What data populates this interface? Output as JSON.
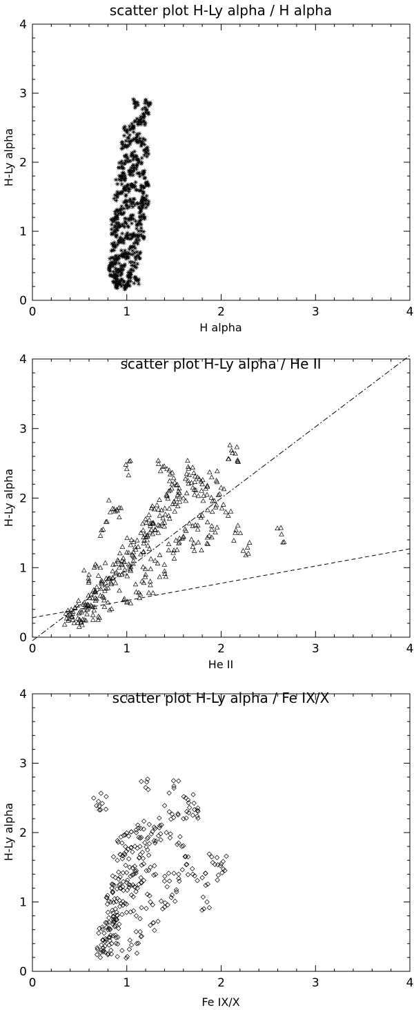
{
  "chart_data": [
    {
      "type": "scatter",
      "title": "scatter plot  H-Ly alpha / H alpha",
      "xlabel": "H alpha",
      "ylabel": "H-Ly alpha",
      "xlim": [
        0,
        4
      ],
      "ylim": [
        0,
        4
      ],
      "x_ticks": [
        "0",
        "1",
        "2",
        "3",
        "4"
      ],
      "y_ticks": [
        "0",
        "1",
        "2",
        "3",
        "4"
      ],
      "marker": "asterisk",
      "grid": false,
      "series": [
        {
          "points": [
            [
              0.88,
              0.22
            ],
            [
              0.92,
              0.25
            ],
            [
              0.97,
              0.22
            ],
            [
              1.02,
              0.28
            ],
            [
              0.86,
              0.35
            ],
            [
              0.91,
              0.4
            ],
            [
              0.96,
              0.45
            ],
            [
              1.03,
              0.38
            ],
            [
              1.08,
              0.5
            ],
            [
              0.85,
              0.55
            ],
            [
              0.9,
              0.6
            ],
            [
              0.95,
              0.66
            ],
            [
              1.0,
              0.62
            ],
            [
              1.06,
              0.72
            ],
            [
              1.12,
              0.65
            ],
            [
              0.86,
              0.78
            ],
            [
              0.92,
              0.85
            ],
            [
              0.98,
              0.9
            ],
            [
              1.04,
              0.95
            ],
            [
              1.1,
              0.88
            ],
            [
              0.87,
              1.0
            ],
            [
              0.93,
              1.08
            ],
            [
              0.99,
              1.12
            ],
            [
              1.05,
              1.18
            ],
            [
              1.12,
              1.1
            ],
            [
              1.16,
              1.22
            ],
            [
              0.88,
              1.25
            ],
            [
              0.94,
              1.32
            ],
            [
              1.0,
              1.38
            ],
            [
              1.06,
              1.42
            ],
            [
              1.13,
              1.35
            ],
            [
              1.18,
              1.48
            ],
            [
              0.9,
              1.5
            ],
            [
              0.96,
              1.58
            ],
            [
              1.02,
              1.62
            ],
            [
              1.08,
              1.66
            ],
            [
              1.15,
              1.6
            ],
            [
              1.2,
              1.7
            ],
            [
              0.92,
              1.75
            ],
            [
              0.98,
              1.8
            ],
            [
              1.04,
              1.86
            ],
            [
              1.1,
              1.9
            ],
            [
              1.17,
              1.82
            ],
            [
              0.95,
              1.98
            ],
            [
              1.01,
              2.05
            ],
            [
              1.07,
              2.1
            ],
            [
              1.13,
              2.02
            ],
            [
              1.2,
              2.15
            ],
            [
              0.98,
              2.25
            ],
            [
              1.04,
              2.3
            ],
            [
              1.1,
              2.35
            ],
            [
              1.16,
              2.28
            ],
            [
              1.0,
              2.45
            ],
            [
              1.06,
              2.5
            ],
            [
              1.12,
              2.58
            ],
            [
              1.09,
              2.85
            ],
            [
              1.2,
              2.72
            ],
            [
              1.22,
              2.85
            ],
            [
              1.18,
              2.6
            ],
            [
              0.9,
              0.3
            ],
            [
              1.1,
              0.3
            ],
            [
              0.82,
              0.48
            ],
            [
              1.15,
              0.95
            ],
            [
              1.2,
              1.4
            ],
            [
              0.87,
              1.15
            ]
          ]
        }
      ]
    },
    {
      "type": "scatter",
      "title": "scatter plot  H-Ly alpha / He II",
      "xlabel": "He II",
      "ylabel": "H-Ly alpha",
      "xlim": [
        0,
        4
      ],
      "ylim": [
        0,
        4
      ],
      "x_ticks": [
        "0",
        "1",
        "2",
        "3",
        "4"
      ],
      "y_ticks": [
        "0",
        "1",
        "2",
        "3",
        "4"
      ],
      "marker": "triangle",
      "grid": false,
      "series": [
        {
          "points": [
            [
              0.38,
              0.24
            ],
            [
              0.42,
              0.3
            ],
            [
              0.48,
              0.27
            ],
            [
              0.52,
              0.36
            ],
            [
              0.45,
              0.42
            ],
            [
              0.58,
              0.4
            ],
            [
              0.55,
              0.5
            ],
            [
              0.62,
              0.46
            ],
            [
              0.68,
              0.55
            ],
            [
              0.72,
              0.6
            ],
            [
              0.65,
              0.68
            ],
            [
              0.78,
              0.7
            ],
            [
              0.74,
              0.8
            ],
            [
              0.82,
              0.85
            ],
            [
              0.88,
              0.78
            ],
            [
              0.85,
              0.95
            ],
            [
              0.92,
              1.0
            ],
            [
              0.98,
              0.92
            ],
            [
              0.95,
              1.1
            ],
            [
              1.02,
              1.05
            ],
            [
              1.08,
              1.15
            ],
            [
              1.0,
              1.22
            ],
            [
              1.12,
              1.3
            ],
            [
              1.05,
              1.4
            ],
            [
              1.18,
              1.35
            ],
            [
              1.15,
              1.5
            ],
            [
              1.22,
              1.45
            ],
            [
              1.25,
              1.6
            ],
            [
              1.3,
              1.55
            ],
            [
              1.2,
              1.7
            ],
            [
              1.35,
              1.75
            ],
            [
              1.4,
              1.65
            ],
            [
              1.32,
              1.9
            ],
            [
              1.45,
              1.85
            ],
            [
              1.5,
              1.95
            ],
            [
              1.42,
              2.05
            ],
            [
              1.55,
              2.1
            ],
            [
              1.6,
              2.0
            ],
            [
              1.48,
              2.2
            ],
            [
              1.65,
              2.25
            ],
            [
              1.7,
              2.15
            ],
            [
              1.75,
              2.3
            ],
            [
              1.8,
              2.2
            ],
            [
              1.85,
              2.05
            ],
            [
              1.9,
              2.3
            ],
            [
              1.95,
              1.9
            ],
            [
              2.0,
              2.15
            ],
            [
              1.38,
              2.45
            ],
            [
              1.45,
              2.4
            ],
            [
              1.65,
              2.45
            ],
            [
              2.12,
              2.65
            ],
            [
              2.15,
              2.64
            ],
            [
              1.0,
              2.42
            ],
            [
              0.85,
              1.85
            ],
            [
              0.9,
              1.82
            ],
            [
              0.75,
              1.55
            ],
            [
              0.72,
              1.0
            ],
            [
              0.6,
              0.9
            ],
            [
              0.8,
              0.5
            ],
            [
              1.1,
              0.65
            ],
            [
              1.2,
              0.9
            ],
            [
              1.3,
              1.1
            ],
            [
              1.5,
              1.25
            ],
            [
              1.6,
              1.45
            ],
            [
              1.7,
              1.6
            ],
            [
              1.8,
              1.75
            ],
            [
              1.9,
              1.55
            ],
            [
              2.05,
              1.8
            ],
            [
              2.28,
              1.29
            ],
            [
              2.64,
              1.48
            ],
            [
              2.15,
              1.5
            ],
            [
              1.55,
              1.35
            ],
            [
              1.25,
              0.75
            ],
            [
              1.4,
              0.95
            ],
            [
              1.0,
              0.5
            ],
            [
              0.55,
              0.25
            ],
            [
              0.7,
              0.3
            ],
            [
              0.4,
              0.32
            ],
            [
              1.7,
              1.3
            ],
            [
              1.85,
              1.35
            ]
          ]
        }
      ],
      "fits": [
        {
          "style": "dash-dot",
          "x": [
            0,
            4
          ],
          "y": [
            -0.05,
            4.05
          ]
        },
        {
          "style": "dashed",
          "x": [
            0,
            4
          ],
          "y": [
            0.28,
            1.27
          ]
        }
      ]
    },
    {
      "type": "scatter",
      "title": "scatter plot  H-Ly alpha / Fe IX/X",
      "xlabel": "Fe IX/X",
      "ylabel": "H-Ly alpha",
      "xlim": [
        0,
        4
      ],
      "ylim": [
        0,
        4
      ],
      "x_ticks": [
        "0",
        "1",
        "2",
        "3",
        "4"
      ],
      "y_ticks": [
        "0",
        "1",
        "2",
        "3",
        "4"
      ],
      "marker": "diamond",
      "grid": false,
      "series": [
        {
          "points": [
            [
              0.72,
              0.2
            ],
            [
              0.75,
              0.28
            ],
            [
              0.8,
              0.24
            ],
            [
              0.73,
              0.38
            ],
            [
              0.78,
              0.45
            ],
            [
              0.84,
              0.4
            ],
            [
              0.76,
              0.55
            ],
            [
              0.82,
              0.6
            ],
            [
              0.88,
              0.52
            ],
            [
              0.79,
              0.7
            ],
            [
              0.86,
              0.75
            ],
            [
              0.92,
              0.68
            ],
            [
              0.8,
              0.85
            ],
            [
              0.88,
              0.9
            ],
            [
              0.95,
              0.82
            ],
            [
              0.83,
              1.0
            ],
            [
              0.9,
              1.05
            ],
            [
              0.98,
              0.98
            ],
            [
              1.05,
              1.1
            ],
            [
              0.85,
              1.15
            ],
            [
              0.93,
              1.2
            ],
            [
              1.0,
              1.28
            ],
            [
              1.08,
              1.22
            ],
            [
              1.15,
              1.35
            ],
            [
              0.88,
              1.35
            ],
            [
              0.96,
              1.42
            ],
            [
              1.03,
              1.5
            ],
            [
              1.1,
              1.45
            ],
            [
              1.18,
              1.55
            ],
            [
              1.25,
              1.5
            ],
            [
              0.9,
              1.6
            ],
            [
              0.98,
              1.68
            ],
            [
              1.06,
              1.72
            ],
            [
              1.14,
              1.8
            ],
            [
              1.22,
              1.75
            ],
            [
              1.3,
              1.85
            ],
            [
              0.95,
              1.85
            ],
            [
              1.02,
              1.95
            ],
            [
              1.1,
              2.0
            ],
            [
              1.18,
              2.05
            ],
            [
              1.26,
              1.98
            ],
            [
              1.35,
              2.1
            ],
            [
              1.42,
              2.0
            ],
            [
              0.7,
              2.45
            ],
            [
              0.74,
              2.42
            ],
            [
              1.2,
              2.65
            ],
            [
              1.5,
              2.64
            ],
            [
              1.65,
              2.47
            ],
            [
              1.45,
              2.3
            ],
            [
              1.6,
              2.2
            ],
            [
              1.7,
              2.25
            ],
            [
              1.75,
              2.32
            ],
            [
              1.55,
              1.85
            ],
            [
              1.65,
              1.65
            ],
            [
              1.7,
              1.4
            ],
            [
              1.8,
              1.35
            ],
            [
              1.85,
              1.0
            ],
            [
              1.9,
              1.65
            ],
            [
              2.0,
              1.55
            ],
            [
              2.01,
              1.42
            ],
            [
              1.48,
              1.1
            ],
            [
              1.38,
              0.9
            ],
            [
              1.28,
              0.7
            ],
            [
              1.15,
              0.5
            ],
            [
              1.05,
              0.38
            ],
            [
              0.95,
              0.3
            ],
            [
              1.1,
              0.8
            ],
            [
              1.25,
              1.0
            ],
            [
              1.4,
              1.3
            ],
            [
              1.55,
              1.4
            ]
          ]
        }
      ]
    }
  ]
}
